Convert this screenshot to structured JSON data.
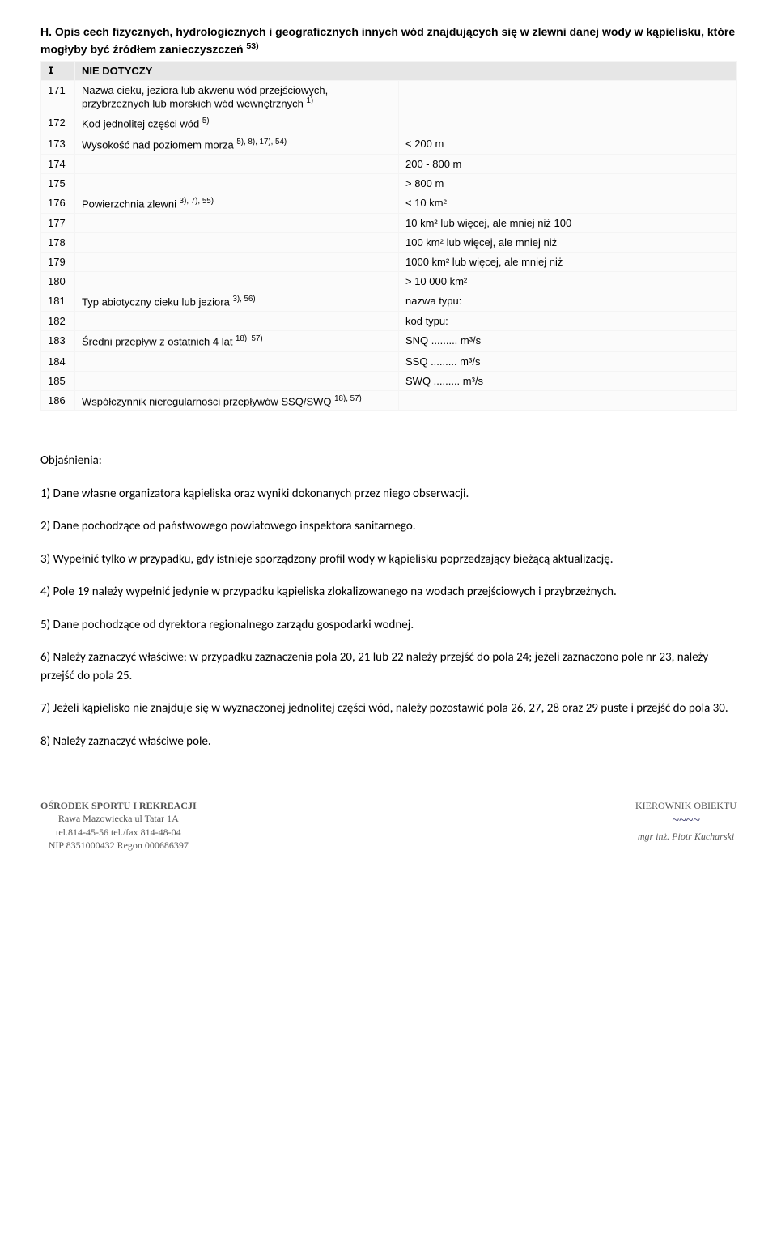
{
  "section": {
    "letter": "H.",
    "title": "Opis cech fizycznych, hydrologicznych i geograficznych innych wód znajdujących się w zlewni danej wody w kąpielisku, które mogłyby być źródłem zanieczyszczeń",
    "title_sup": "53)",
    "subheader_letter": "I",
    "subheader_text": "NIE DOTYCZY"
  },
  "rows": [
    {
      "num": "171",
      "label": "Nazwa cieku, jeziora lub akwenu wód przejściowych, przybrzeżnych lub morskich wód wewnętrznych ",
      "sup": "1)",
      "value": ""
    },
    {
      "num": "172",
      "label": "Kod jednolitej części wód ",
      "sup": "5)",
      "value": ""
    },
    {
      "num": "173",
      "label": "Wysokość nad poziomem morza ",
      "sup": "5), 8), 17), 54)",
      "value": "< 200 m"
    },
    {
      "num": "174",
      "label": "",
      "sup": "",
      "value": "200 - 800 m"
    },
    {
      "num": "175",
      "label": "",
      "sup": "",
      "value": "> 800 m"
    },
    {
      "num": "176",
      "label": "Powierzchnia zlewni ",
      "sup": "3), 7), 55)",
      "value": "< 10 km²"
    },
    {
      "num": "177",
      "label": "",
      "sup": "",
      "value": "10 km² lub więcej, ale mniej niż 100"
    },
    {
      "num": "178",
      "label": "",
      "sup": "",
      "value": "100 km² lub więcej, ale mniej niż"
    },
    {
      "num": "179",
      "label": "",
      "sup": "",
      "value": "1000 km² lub więcej, ale mniej niż"
    },
    {
      "num": "180",
      "label": "",
      "sup": "",
      "value": "> 10 000 km²"
    },
    {
      "num": "181",
      "label": "Typ abiotyczny cieku lub jeziora ",
      "sup": "3), 56)",
      "value": "nazwa typu:"
    },
    {
      "num": "182",
      "label": "",
      "sup": "",
      "value": "kod typu:"
    },
    {
      "num": "183",
      "label": "Średni przepływ z ostatnich 4 lat ",
      "sup": "18), 57)",
      "value": "SNQ ......... m³/s"
    },
    {
      "num": "184",
      "label": "",
      "sup": "",
      "value": "SSQ ......... m³/s"
    },
    {
      "num": "185",
      "label": "",
      "sup": "",
      "value": "SWQ ......... m³/s"
    },
    {
      "num": "186",
      "label": "Współczynnik nieregularności przepływów SSQ/SWQ ",
      "sup": "18), 57)",
      "value": ""
    }
  ],
  "notes": {
    "heading": "Objaśnienia:",
    "items": [
      "1)  Dane własne organizatora kąpieliska oraz wyniki dokonanych przez niego obserwacji.",
      "2)  Dane pochodzące od państwowego powiatowego inspektora sanitarnego.",
      "3)  Wypełnić tylko w przypadku, gdy istnieje sporządzony profil wody w kąpielisku poprzedzający bieżącą aktualizację.",
      "4)  Pole 19 należy wypełnić jedynie w przypadku kąpieliska zlokalizowanego na wodach przejściowych i przybrzeżnych.",
      "5)  Dane pochodzące od dyrektora regionalnego zarządu gospodarki wodnej.",
      "6)  Należy zaznaczyć właściwe; w przypadku zaznaczenia pola 20, 21 lub 22 należy przejść do pola 24; jeżeli zaznaczono pole nr 23, należy przejść do pola 25.",
      "7)  Jeżeli kąpielisko nie znajduje się w wyznaczonej jednolitej części wód, należy pozostawić pola 26, 27, 28 oraz 29 puste i przejść do pola 30.",
      "8)  Należy zaznaczyć właściwe pole."
    ]
  },
  "footer": {
    "left": {
      "l1": "OŚRODEK SPORTU I REKREACJI",
      "l2": "Rawa Mazowiecka ul Tatar 1A",
      "l3": "tel.814-45-56  tel./fax 814-48-04",
      "l4": "NIP 8351000432  Regon 000686397"
    },
    "right": {
      "l1": "KIEROWNIK OBIEKTU",
      "l2": "mgr inż. Piotr Kucharski"
    }
  }
}
